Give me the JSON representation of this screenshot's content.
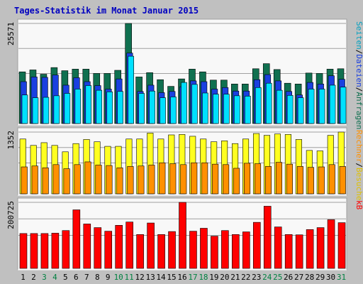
{
  "chart_data": {
    "type": "bar",
    "title": "Tages-Statistik im Monat Januar 2015",
    "colors": {
      "background": "#c0c0c0",
      "panel": "#f8f8f8",
      "border": "#a0a0a0",
      "title": "#0000c0",
      "hits": "#107050",
      "files": "#1a40e0",
      "pages": "#00e0ff",
      "visits": "#ffff20",
      "sites": "#ff9000",
      "kbytes": "#ff0000",
      "weekend_label": "#008040",
      "weekday_label": "#000000"
    },
    "categories": [
      "1",
      "2",
      "3",
      "4",
      "5",
      "6",
      "7",
      "8",
      "9",
      "10",
      "11",
      "12",
      "13",
      "14",
      "15",
      "16",
      "17",
      "18",
      "19",
      "20",
      "21",
      "22",
      "23",
      "24",
      "25",
      "26",
      "27",
      "28",
      "29",
      "30",
      "31"
    ],
    "weekend_days": [
      "3",
      "4",
      "10",
      "11",
      "17",
      "18",
      "24",
      "25",
      "31"
    ],
    "panels": [
      {
        "id": "requests",
        "scale_label": "25571",
        "ylim": [
          0,
          25571
        ],
        "legend": [
          {
            "text": "Anfragen",
            "color": "#107050"
          },
          {
            "text": "/",
            "color": "#000000"
          },
          {
            "text": "Dateien",
            "color": "#1a40e0"
          },
          {
            "text": "/",
            "color": "#000000"
          },
          {
            "text": "Seiten",
            "color": "#00a0c0"
          }
        ],
        "series": [
          {
            "name": "Anfragen",
            "color": "#107050",
            "values": [
              13200,
              13700,
              12600,
              14300,
              13500,
              13900,
              13900,
              12800,
              12800,
              13600,
              25571,
              11900,
              13000,
              11200,
              9500,
              11400,
              13900,
              13200,
              11100,
              11100,
              10100,
              10100,
              14000,
              15300,
              13800,
              10300,
              10100,
              12900,
              12800,
              13900,
              14000
            ]
          },
          {
            "name": "Dateien",
            "color": "#1a40e0",
            "values": [
              10700,
              11900,
              11800,
              12400,
              9800,
              11700,
              10700,
              9700,
              8800,
              11400,
              18000,
              8200,
              9800,
              7900,
              8200,
              9400,
              10900,
              10700,
              8800,
              9200,
              8300,
              8300,
              11200,
              12500,
              10900,
              8200,
              7300,
              10500,
              10100,
              12200,
              11300
            ]
          },
          {
            "name": "Seiten",
            "color": "#00e0ff",
            "values": [
              7300,
              6600,
              6700,
              7100,
              7700,
              8800,
              9700,
              8500,
              8100,
              8200,
              17200,
              7700,
              8300,
              6600,
              6800,
              10500,
              10000,
              7800,
              7500,
              7500,
              7100,
              7000,
              9200,
              10300,
              8500,
              7200,
              6600,
              8800,
              8800,
              9800,
              9300
            ]
          }
        ]
      },
      {
        "id": "visits",
        "scale_label": "1352",
        "ylim": [
          0,
          1352
        ],
        "legend": [
          {
            "text": "Besuche",
            "color": "#e0c000"
          },
          {
            "text": "/",
            "color": "#000000"
          },
          {
            "text": "Rechner",
            "color": "#ff9000"
          }
        ],
        "series": [
          {
            "name": "Besuche",
            "color": "#ffff20",
            "values": [
              1200,
              1060,
              1120,
              1060,
              920,
              1100,
              1190,
              1140,
              1040,
              1040,
              1200,
              1200,
              1330,
              1200,
              1290,
              1300,
              1260,
              1200,
              1140,
              1160,
              1100,
              1200,
              1320,
              1280,
              1310,
              1300,
              1190,
              950,
              940,
              1280,
              1352
            ]
          },
          {
            "name": "Rechner",
            "color": "#ff9000",
            "values": [
              590,
              610,
              570,
              640,
              550,
              640,
              700,
              630,
              620,
              570,
              600,
              610,
              630,
              680,
              660,
              640,
              680,
              680,
              650,
              640,
              560,
              670,
              660,
              600,
              690,
              650,
              600,
              580,
              590,
              640,
              600
            ]
          }
        ]
      },
      {
        "id": "kbytes",
        "scale_label": "200725",
        "ylim": [
          0,
          200725
        ],
        "legend": [
          {
            "text": "kB",
            "color": "#ff0000"
          }
        ],
        "series": [
          {
            "name": "kB",
            "color": "#ff0000",
            "values": [
              106000,
              106000,
              106000,
              107000,
              115000,
              178000,
              135000,
              124000,
              113000,
              131000,
              141000,
              103000,
              138000,
              103000,
              112000,
              200725,
              113000,
              122000,
              98000,
              115000,
              103000,
              111000,
              140000,
              189000,
              126000,
              103000,
              102000,
              118000,
              124000,
              148000,
              139000
            ]
          }
        ]
      }
    ]
  }
}
